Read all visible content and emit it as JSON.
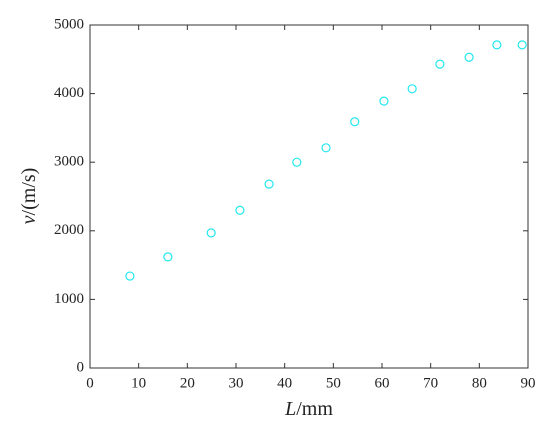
{
  "chart_data": {
    "type": "scatter",
    "xlabel": "L/mm",
    "ylabel": "v/(m/s)",
    "x": [
      8.2,
      16.0,
      24.9,
      30.8,
      36.8,
      42.5,
      48.5,
      54.4,
      60.4,
      66.2,
      71.9,
      77.9,
      83.6,
      88.8
    ],
    "values": [
      1340,
      1620,
      1970,
      2300,
      2680,
      3000,
      3210,
      3590,
      3890,
      4070,
      4430,
      4530,
      4710,
      4710
    ],
    "color": "#22e8ee",
    "xlim": [
      0,
      90
    ],
    "xticks": [
      0,
      10,
      20,
      30,
      40,
      50,
      60,
      70,
      80,
      90
    ],
    "ylim": [
      0,
      5000
    ],
    "yticks": [
      0,
      1000,
      2000,
      3000,
      4000,
      5000
    ],
    "grid": false
  }
}
